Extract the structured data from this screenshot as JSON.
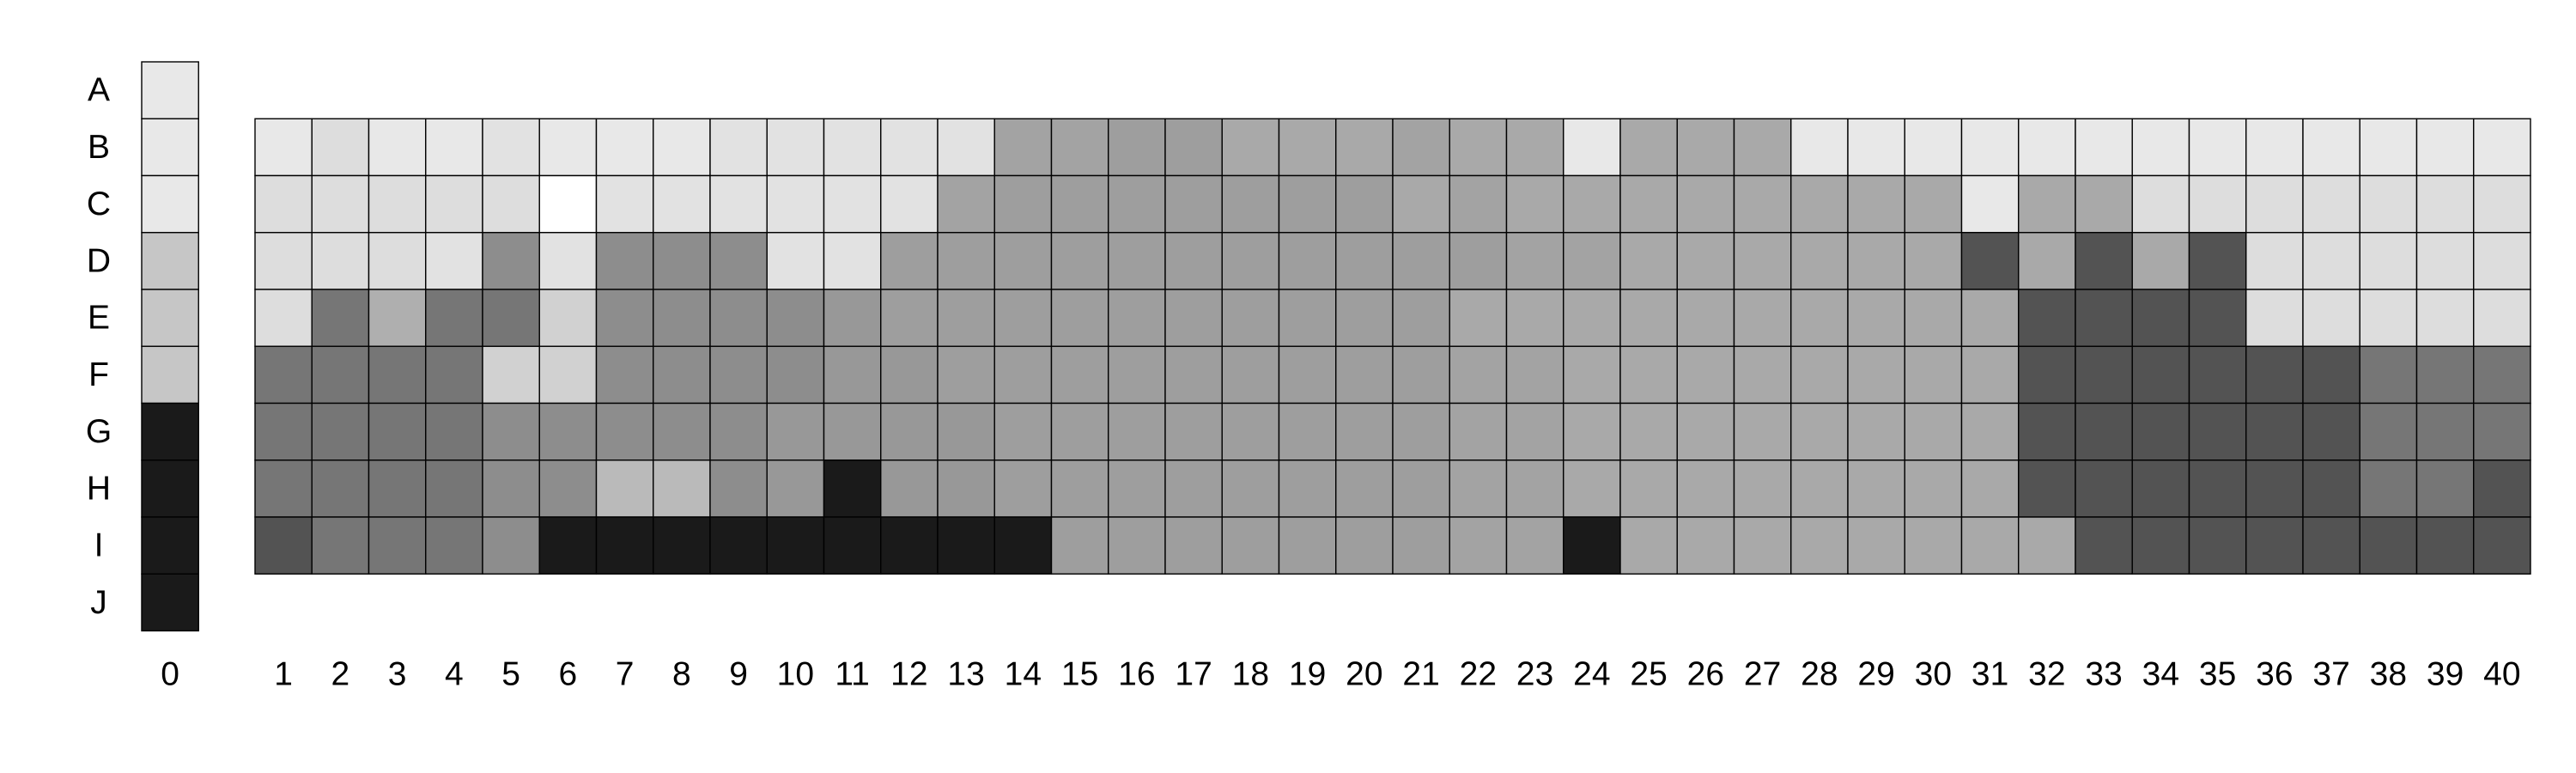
{
  "chart_data": {
    "type": "heatmap",
    "title": "",
    "xlabel": "",
    "ylabel": "",
    "rows": [
      "A",
      "B",
      "C",
      "D",
      "E",
      "F",
      "G",
      "H",
      "I",
      "J"
    ],
    "key_column": {
      "label": "0",
      "values": [
        4,
        4,
        4,
        10,
        10,
        10,
        40,
        40,
        40,
        40
      ]
    },
    "columns": [
      "1",
      "2",
      "3",
      "4",
      "5",
      "6",
      "7",
      "8",
      "9",
      "10",
      "11",
      "12",
      "13",
      "14",
      "15",
      "16",
      "17",
      "18",
      "19",
      "20",
      "21",
      "22",
      "23",
      "24",
      "25",
      "26",
      "27",
      "28",
      "29",
      "30",
      "31",
      "32",
      "33",
      "34",
      "35",
      "36",
      "37",
      "38",
      "39",
      "40"
    ],
    "grid_rows": [
      "B",
      "C",
      "D",
      "E",
      "F",
      "G",
      "H",
      "I"
    ],
    "grid_values": [
      [
        4,
        6,
        4,
        4,
        5,
        4,
        4,
        4,
        5,
        5,
        5,
        5,
        5,
        16,
        16,
        17,
        17,
        15,
        15,
        15,
        16,
        15,
        15,
        4,
        15,
        15,
        15,
        4,
        4,
        4,
        4,
        4,
        4,
        4,
        4,
        4,
        4,
        4,
        4,
        4
      ],
      [
        6,
        6,
        6,
        6,
        6,
        0,
        5,
        5,
        5,
        5,
        5,
        5,
        16,
        17,
        17,
        17,
        17,
        17,
        17,
        17,
        15,
        16,
        15,
        15,
        15,
        15,
        15,
        15,
        15,
        15,
        4,
        15,
        15,
        6,
        6,
        6,
        6,
        6,
        6,
        6
      ],
      [
        6,
        6,
        6,
        5,
        20,
        5,
        20,
        20,
        20,
        5,
        5,
        17,
        17,
        17,
        17,
        17,
        17,
        17,
        17,
        17,
        17,
        17,
        16,
        16,
        15,
        15,
        15,
        15,
        15,
        15,
        30,
        15,
        30,
        15,
        30,
        6,
        6,
        6,
        6,
        6
      ],
      [
        6,
        24,
        14,
        24,
        24,
        8,
        20,
        20,
        20,
        20,
        18,
        17,
        17,
        17,
        17,
        17,
        17,
        17,
        17,
        17,
        17,
        15,
        15,
        15,
        15,
        15,
        15,
        15,
        15,
        15,
        15,
        30,
        30,
        30,
        30,
        6,
        6,
        6,
        6,
        6
      ],
      [
        24,
        24,
        24,
        24,
        8,
        8,
        20,
        20,
        20,
        20,
        18,
        18,
        17,
        17,
        17,
        17,
        17,
        17,
        17,
        17,
        17,
        16,
        16,
        15,
        15,
        15,
        15,
        15,
        15,
        15,
        15,
        30,
        30,
        30,
        30,
        30,
        30,
        24,
        24,
        24
      ],
      [
        24,
        24,
        24,
        24,
        20,
        20,
        20,
        20,
        20,
        18,
        18,
        18,
        18,
        17,
        17,
        17,
        17,
        17,
        17,
        17,
        17,
        16,
        16,
        15,
        15,
        15,
        15,
        15,
        15,
        15,
        15,
        30,
        30,
        30,
        30,
        30,
        30,
        24,
        24,
        24
      ],
      [
        24,
        24,
        24,
        24,
        20,
        20,
        12,
        12,
        20,
        18,
        40,
        18,
        18,
        17,
        17,
        17,
        17,
        17,
        17,
        17,
        17,
        16,
        16,
        15,
        15,
        15,
        15,
        15,
        15,
        15,
        15,
        30,
        30,
        30,
        30,
        30,
        30,
        24,
        24,
        30
      ],
      [
        30,
        24,
        24,
        24,
        20,
        40,
        40,
        40,
        40,
        40,
        40,
        40,
        40,
        40,
        17,
        17,
        17,
        17,
        17,
        17,
        17,
        16,
        16,
        40,
        15,
        15,
        15,
        15,
        15,
        15,
        15,
        15,
        30,
        30,
        30,
        30,
        30,
        30,
        30,
        30
      ]
    ],
    "value_scale": {
      "min": 0,
      "max": 40,
      "color_min": "#ffffff",
      "color_max": "#1a1a1a"
    },
    "colors": {
      "cell_border": "#000000",
      "text": "#000000"
    },
    "grid": true,
    "legend": "none"
  }
}
